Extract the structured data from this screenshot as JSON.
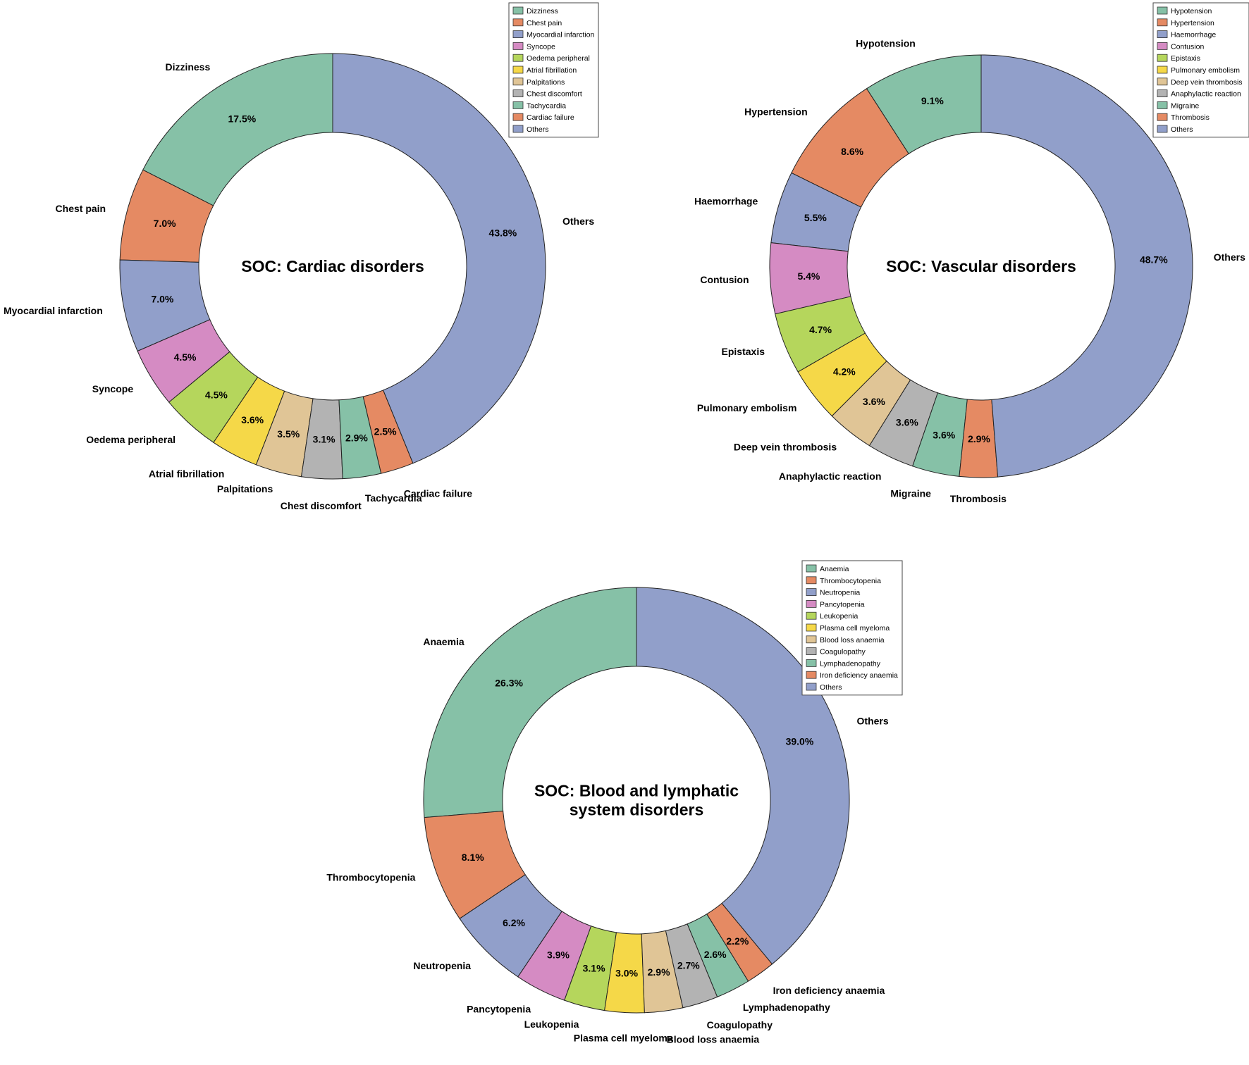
{
  "palette": {
    "green": "#86c1a7",
    "orange": "#e58a63",
    "blue": "#919fca",
    "pink": "#d58bc3",
    "lime": "#b5d65c",
    "yellow": "#f5d848",
    "tan": "#e0c596",
    "gray": "#b3b3b3"
  },
  "chart_data": [
    {
      "type": "pie",
      "title": [
        "SOC: Cardiac disorders"
      ],
      "legend_position": "top-right",
      "slices": [
        {
          "label": "Dizziness",
          "value": 17.5,
          "pct_text": "17.5%",
          "color": "#86c1a7"
        },
        {
          "label": "Chest pain",
          "value": 7.0,
          "pct_text": "7.0%",
          "color": "#e58a63"
        },
        {
          "label": "Myocardial infarction",
          "value": 7.0,
          "pct_text": "7.0%",
          "color": "#919fca"
        },
        {
          "label": "Syncope",
          "value": 4.5,
          "pct_text": "4.5%",
          "color": "#d58bc3"
        },
        {
          "label": "Oedema peripheral",
          "value": 4.5,
          "pct_text": "4.5%",
          "color": "#b5d65c"
        },
        {
          "label": "Atrial fibrillation",
          "value": 3.6,
          "pct_text": "3.6%",
          "color": "#f5d848"
        },
        {
          "label": "Palpitations",
          "value": 3.5,
          "pct_text": "3.5%",
          "color": "#e0c596"
        },
        {
          "label": "Chest discomfort",
          "value": 3.1,
          "pct_text": "3.1%",
          "color": "#b3b3b3"
        },
        {
          "label": "Tachycardia",
          "value": 2.9,
          "pct_text": "2.9%",
          "color": "#86c1a7"
        },
        {
          "label": "Cardiac failure",
          "value": 2.5,
          "pct_text": "2.5%",
          "color": "#e58a63"
        },
        {
          "label": "Others",
          "value": 43.8,
          "pct_text": "43.8%",
          "color": "#919fca"
        }
      ]
    },
    {
      "type": "pie",
      "title": [
        "SOC: Vascular disorders"
      ],
      "legend_position": "top-right",
      "slices": [
        {
          "label": "Hypotension",
          "value": 9.1,
          "pct_text": "9.1%",
          "color": "#86c1a7"
        },
        {
          "label": "Hypertension",
          "value": 8.6,
          "pct_text": "8.6%",
          "color": "#e58a63"
        },
        {
          "label": "Haemorrhage",
          "value": 5.5,
          "pct_text": "5.5%",
          "color": "#919fca"
        },
        {
          "label": "Contusion",
          "value": 5.4,
          "pct_text": "5.4%",
          "color": "#d58bc3"
        },
        {
          "label": "Epistaxis",
          "value": 4.7,
          "pct_text": "4.7%",
          "color": "#b5d65c"
        },
        {
          "label": "Pulmonary embolism",
          "value": 4.2,
          "pct_text": "4.2%",
          "color": "#f5d848"
        },
        {
          "label": "Deep vein thrombosis",
          "value": 3.6,
          "pct_text": "3.6%",
          "color": "#e0c596"
        },
        {
          "label": "Anaphylactic reaction",
          "value": 3.6,
          "pct_text": "3.6%",
          "color": "#b3b3b3"
        },
        {
          "label": "Migraine",
          "value": 3.6,
          "pct_text": "3.6%",
          "color": "#86c1a7"
        },
        {
          "label": "Thrombosis",
          "value": 2.9,
          "pct_text": "2.9%",
          "color": "#e58a63"
        },
        {
          "label": "Others",
          "value": 48.7,
          "pct_text": "48.7%",
          "color": "#919fca"
        }
      ]
    },
    {
      "type": "pie",
      "title": [
        "SOC: Blood and lymphatic",
        "system disorders"
      ],
      "legend_position": "top-right",
      "slices": [
        {
          "label": "Anaemia",
          "value": 26.3,
          "pct_text": "26.3%",
          "color": "#86c1a7"
        },
        {
          "label": "Thrombocytopenia",
          "value": 8.1,
          "pct_text": "8.1%",
          "color": "#e58a63"
        },
        {
          "label": "Neutropenia",
          "value": 6.2,
          "pct_text": "6.2%",
          "color": "#919fca"
        },
        {
          "label": "Pancytopenia",
          "value": 3.9,
          "pct_text": "3.9%",
          "color": "#d58bc3"
        },
        {
          "label": "Leukopenia",
          "value": 3.1,
          "pct_text": "3.1%",
          "color": "#b5d65c"
        },
        {
          "label": "Plasma cell myeloma",
          "value": 3.0,
          "pct_text": "3.0%",
          "color": "#f5d848"
        },
        {
          "label": "Blood loss anaemia",
          "value": 2.9,
          "pct_text": "2.9%",
          "color": "#e0c596"
        },
        {
          "label": "Coagulopathy",
          "value": 2.7,
          "pct_text": "2.7%",
          "color": "#b3b3b3"
        },
        {
          "label": "Lymphadenopathy",
          "value": 2.6,
          "pct_text": "2.6%",
          "color": "#86c1a7"
        },
        {
          "label": "Iron deficiency anaemia",
          "value": 2.2,
          "pct_text": "2.2%",
          "color": "#e58a63"
        },
        {
          "label": "Others",
          "value": 39.0,
          "pct_text": "39.0%",
          "color": "#919fca"
        }
      ]
    }
  ]
}
